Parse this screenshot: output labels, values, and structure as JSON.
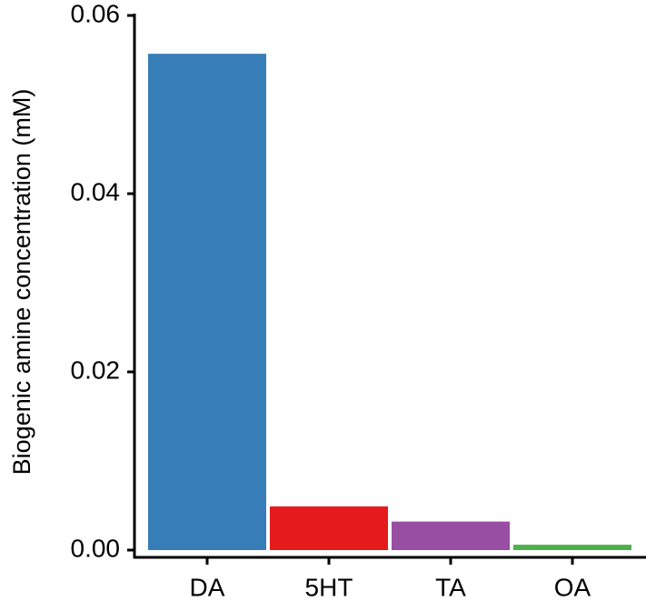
{
  "chart_data": {
    "type": "bar",
    "y_label": "Biogenic amine concentration (mM)",
    "categories": [
      "DA",
      "5HT",
      "TA",
      "OA"
    ],
    "values": [
      0.0557,
      0.0049,
      0.0032,
      0.0006
    ],
    "colors": [
      "#377eb8",
      "#e41a1c",
      "#984ea3",
      "#4daf4a"
    ],
    "ylim": [
      0,
      0.06
    ],
    "yticks": [
      {
        "value": 0,
        "label": "0.00"
      },
      0.02,
      0.04,
      0.06
    ],
    "grid": false
  }
}
